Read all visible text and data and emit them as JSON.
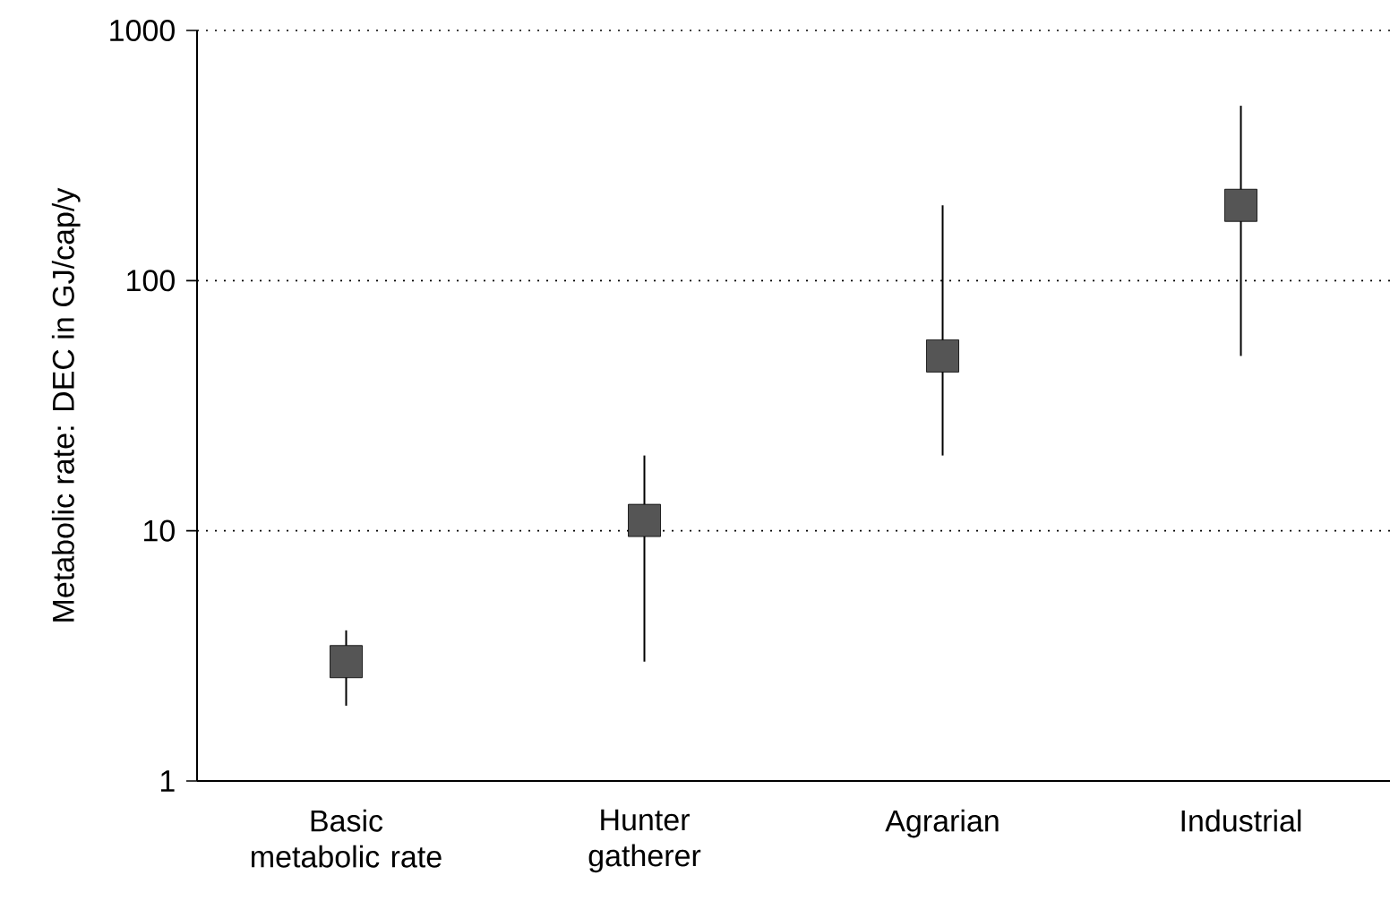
{
  "chart_data": {
    "type": "scatter",
    "ylabel": "Metabolic rate: DEC in GJ/cap/y",
    "categories": [
      "Basic metabolic rate",
      "Hunter gatherer",
      "Agrarian",
      "Industrial"
    ],
    "values": [
      3,
      11,
      50,
      200
    ],
    "errors": [
      [
        2,
        4
      ],
      [
        3,
        20
      ],
      [
        20,
        200
      ],
      [
        50,
        500
      ]
    ],
    "color": "#555555",
    "marker": "square",
    "log": "y",
    "ylim": [
      1,
      1000
    ],
    "yticks": [
      1,
      10,
      100,
      1000
    ],
    "grid": "y"
  }
}
